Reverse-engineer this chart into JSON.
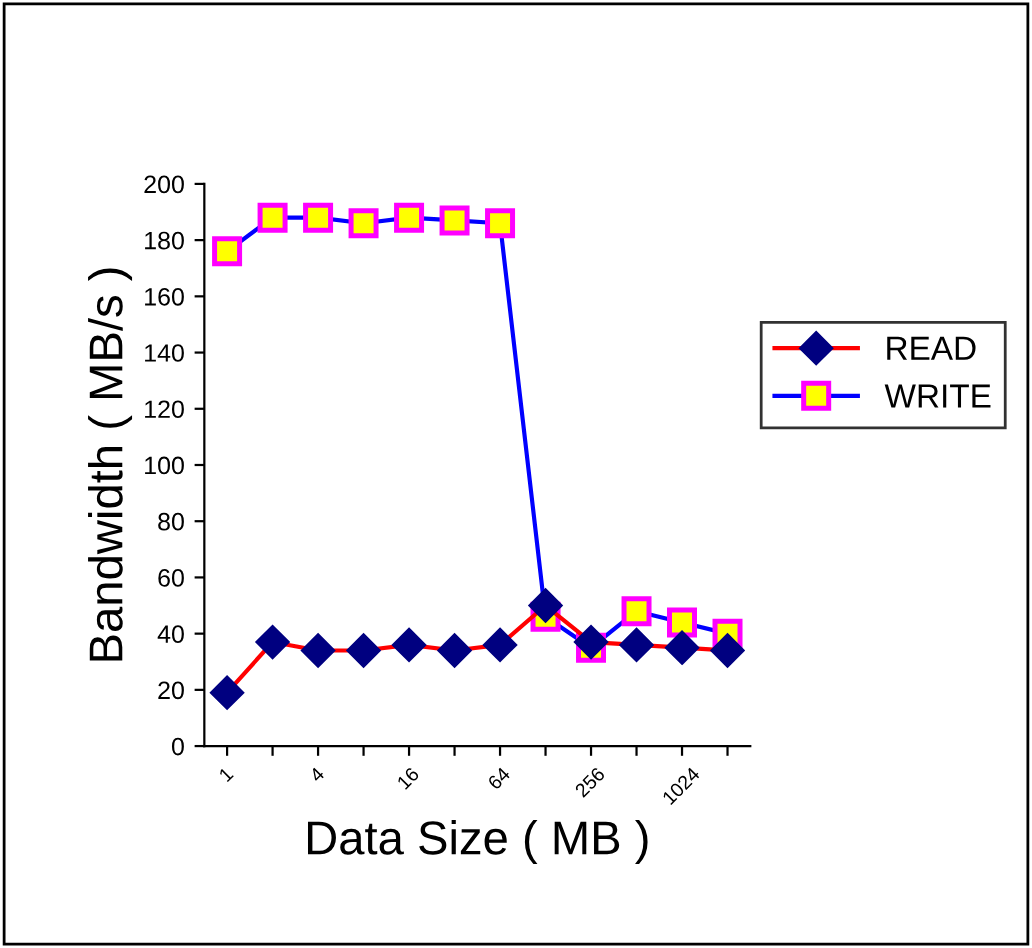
{
  "chart_data": {
    "type": "line",
    "xlabel": "Data Size ( MB )",
    "ylabel": "Bandwidth ( MB/s )",
    "categories": [
      "1",
      null,
      "4",
      null,
      "16",
      null,
      "64",
      null,
      "256",
      null,
      "1024",
      null
    ],
    "series": [
      {
        "name": "READ",
        "color": "#ff0000",
        "marker": "diamond",
        "values": [
          19,
          37,
          34,
          34,
          36,
          34,
          36,
          50,
          37,
          36,
          35,
          34
        ]
      },
      {
        "name": "WRITE",
        "color": "#0000ff",
        "marker": "square",
        "values": [
          176,
          188,
          188,
          186,
          188,
          187,
          186,
          46,
          35,
          48,
          44,
          40
        ]
      }
    ],
    "ylim": [
      0,
      200
    ],
    "yticks": [
      0,
      20,
      40,
      60,
      80,
      100,
      120,
      140,
      160,
      180,
      200
    ],
    "grid": false,
    "legend": "right"
  }
}
